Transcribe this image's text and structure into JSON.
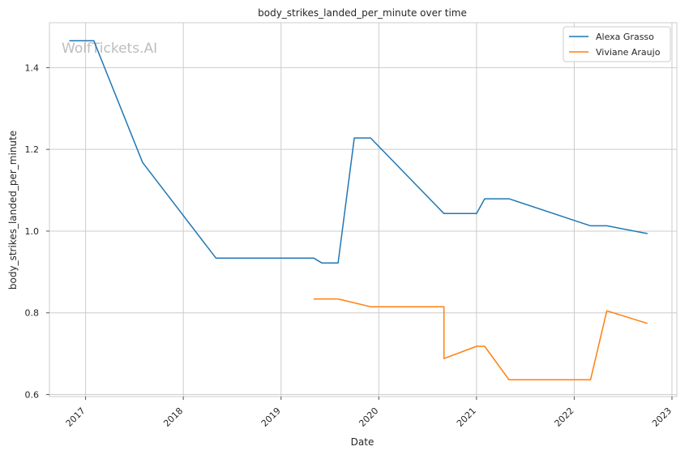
{
  "chart_data": {
    "type": "line",
    "title": "body_strikes_landed_per_minute over time",
    "xlabel": "Date",
    "ylabel": "body_strikes_landed_per_minute",
    "x_ticks": [
      "2017",
      "2018",
      "2019",
      "2020",
      "2021",
      "2022",
      "2023"
    ],
    "y_ticks": [
      "0.6",
      "0.8",
      "1.0",
      "1.2",
      "1.4"
    ],
    "xlim": [
      2016.63,
      2023.05
    ],
    "ylim": [
      0.595,
      1.51
    ],
    "grid": true,
    "legend_position": "top-right",
    "watermark": "WolfTickets.AI",
    "series": [
      {
        "name": "Alexa Grasso",
        "color": "#1f77b4",
        "points": [
          {
            "x": "2016-11",
            "y": 1.466
          },
          {
            "x": "2017-02",
            "y": 1.466
          },
          {
            "x": "2017-08",
            "y": 1.168
          },
          {
            "x": "2018-05",
            "y": 0.934
          },
          {
            "x": "2019-05",
            "y": 0.934
          },
          {
            "x": "2019-06",
            "y": 0.922
          },
          {
            "x": "2019-08",
            "y": 0.922
          },
          {
            "x": "2019-10",
            "y": 1.228
          },
          {
            "x": "2019-12",
            "y": 1.228
          },
          {
            "x": "2020-09",
            "y": 1.043
          },
          {
            "x": "2021-01",
            "y": 1.043
          },
          {
            "x": "2021-02",
            "y": 1.079
          },
          {
            "x": "2021-05",
            "y": 1.079
          },
          {
            "x": "2022-03",
            "y": 1.013
          },
          {
            "x": "2022-05",
            "y": 1.013
          },
          {
            "x": "2022-10",
            "y": 0.994
          }
        ]
      },
      {
        "name": "Viviane Araujo",
        "color": "#ff7f0e",
        "points": [
          {
            "x": "2019-05",
            "y": 0.834
          },
          {
            "x": "2019-08",
            "y": 0.834
          },
          {
            "x": "2019-12",
            "y": 0.815
          },
          {
            "x": "2020-09",
            "y": 0.815
          },
          {
            "x": "2020-09",
            "y": 0.688
          },
          {
            "x": "2021-01",
            "y": 0.718
          },
          {
            "x": "2021-02",
            "y": 0.718
          },
          {
            "x": "2021-05",
            "y": 0.636
          },
          {
            "x": "2022-03",
            "y": 0.636
          },
          {
            "x": "2022-05",
            "y": 0.805
          },
          {
            "x": "2022-10",
            "y": 0.774
          }
        ]
      }
    ]
  }
}
